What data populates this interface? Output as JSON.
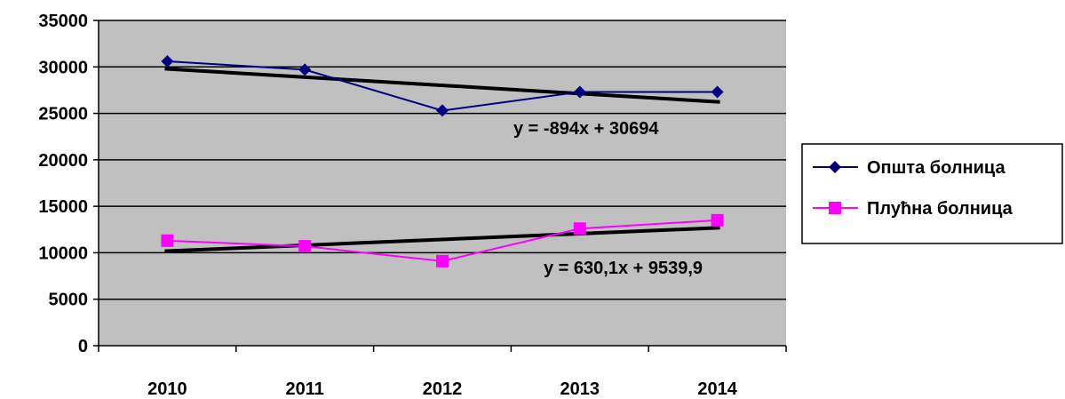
{
  "chart_data": {
    "type": "line",
    "categories": [
      "2010",
      "2011",
      "2012",
      "2013",
      "2014"
    ],
    "series": [
      {
        "name": "Општа болница",
        "values": [
          30600,
          29700,
          25300,
          27300,
          27300
        ],
        "color": "#000080",
        "marker": "diamond"
      },
      {
        "name": "Плућна болница",
        "values": [
          11300,
          10700,
          9100,
          12600,
          13500
        ],
        "color": "#ff00ff",
        "marker": "square"
      }
    ],
    "trendlines": [
      {
        "series": "Општа болница",
        "slope": -894,
        "intercept": 30694,
        "equation": "y = -894x + 30694",
        "color": "#000000"
      },
      {
        "series": "Плућна болница",
        "slope": 630.1,
        "intercept": 9539.9,
        "equation": "y = 630,1x + 9539,9",
        "color": "#000000"
      }
    ],
    "yticks": [
      "0",
      "5000",
      "10000",
      "15000",
      "20000",
      "25000",
      "30000",
      "35000"
    ],
    "ylim": [
      0,
      35000
    ],
    "grid": true,
    "legend": "right",
    "plot_background": "#c0c0c0"
  }
}
